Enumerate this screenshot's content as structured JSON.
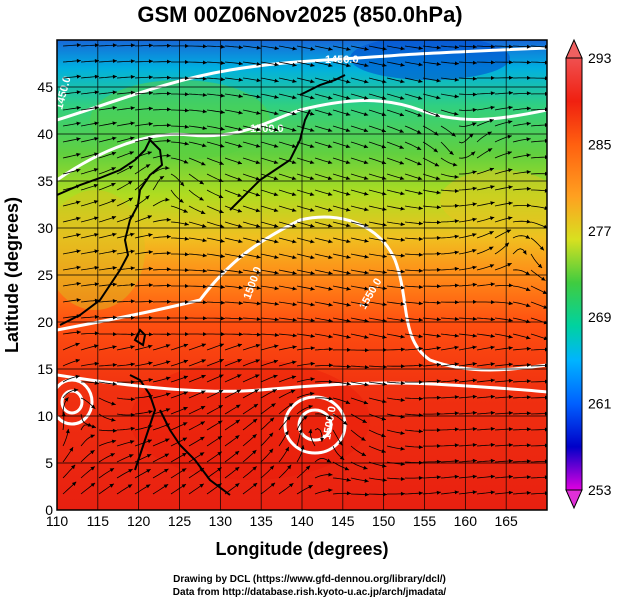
{
  "header": {
    "title": "GSM 00Z06Nov2025 (850.0hPa)"
  },
  "axes": {
    "xlabel": "Longitude (degrees)",
    "ylabel": "Latitude  (degrees)",
    "x_ticks": [
      "110",
      "115",
      "120",
      "125",
      "130",
      "135",
      "140",
      "145",
      "150",
      "155",
      "160",
      "165"
    ],
    "y_ticks": [
      "0",
      "5",
      "10",
      "15",
      "20",
      "25",
      "30",
      "35",
      "40",
      "45"
    ],
    "x_range": [
      110,
      170
    ],
    "y_range": [
      0,
      50
    ]
  },
  "colorbar": {
    "labels": [
      "293",
      "285",
      "277",
      "269",
      "261",
      "253"
    ],
    "range": [
      253,
      293
    ],
    "colors": [
      "#e000e0",
      "#7000c0",
      "#0000c8",
      "#0060ff",
      "#00b4ff",
      "#00d2a0",
      "#40cc40",
      "#a0dc20",
      "#e8e020",
      "#ffa020",
      "#ff5010",
      "#f02010",
      "#f05050"
    ]
  },
  "contour_labels": [
    "1450.0",
    "1500.0",
    "1550.0",
    "1500.0",
    "1500.0",
    "1450.0"
  ],
  "credits": {
    "line1": "Drawing by DCL (https://www.gfd-dennou.org/library/dcl/)",
    "line2": "Data from http://database.rish.kyoto-u.ac.jp/arch/jmadata/"
  }
}
